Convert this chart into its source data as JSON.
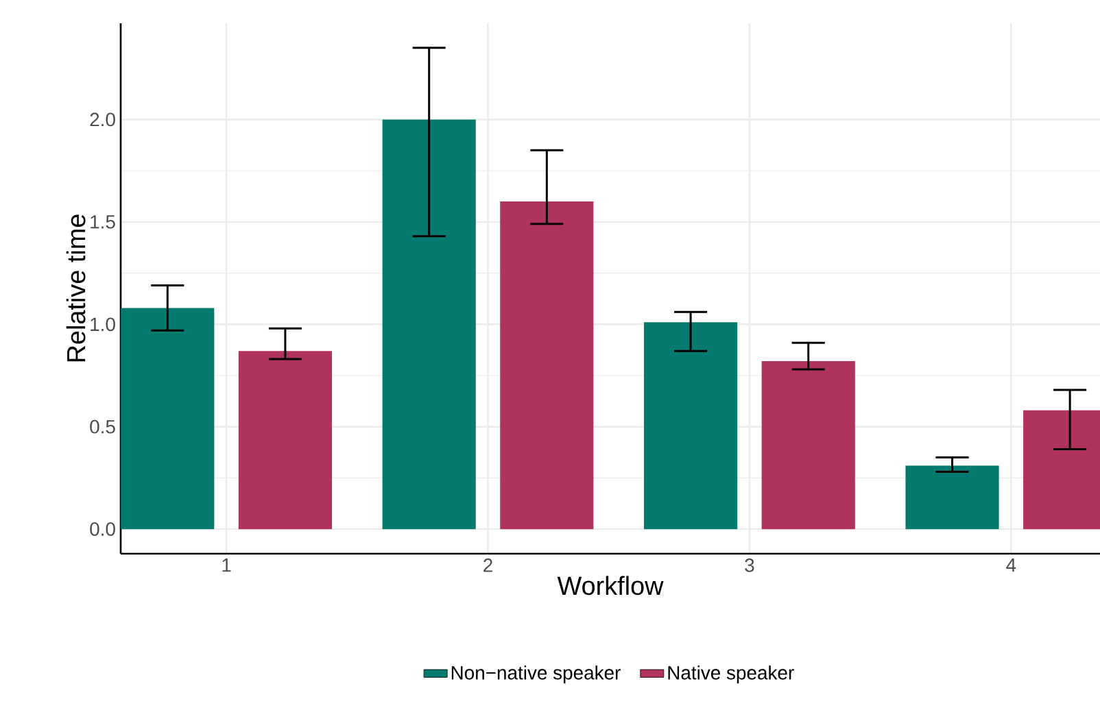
{
  "chart_data": {
    "type": "bar",
    "xlabel": "Workflow",
    "ylabel": "Relative time",
    "categories": [
      "1",
      "2",
      "3",
      "4"
    ],
    "series": [
      {
        "name": "Non−native speaker",
        "color": "#057a6e",
        "values": [
          1.08,
          2.0,
          1.01,
          0.31
        ],
        "errors": [
          [
            0.97,
            1.19
          ],
          [
            1.43,
            2.35
          ],
          [
            0.87,
            1.06
          ],
          [
            0.28,
            0.35
          ]
        ]
      },
      {
        "name": "Native speaker",
        "color": "#b0325f",
        "values": [
          0.87,
          1.6,
          0.82,
          0.58
        ],
        "errors": [
          [
            0.83,
            0.98
          ],
          [
            1.49,
            1.85
          ],
          [
            0.78,
            0.91
          ],
          [
            0.39,
            0.68
          ]
        ]
      }
    ],
    "ylim": [
      -0.12,
      2.47
    ],
    "yticks": [
      {
        "value": 0,
        "label": "0.0"
      },
      0.5,
      {
        "value": 1,
        "label": "1.0"
      },
      1.5,
      {
        "value": 2,
        "label": "2.0"
      }
    ],
    "grid": true,
    "legend": "bottom"
  }
}
